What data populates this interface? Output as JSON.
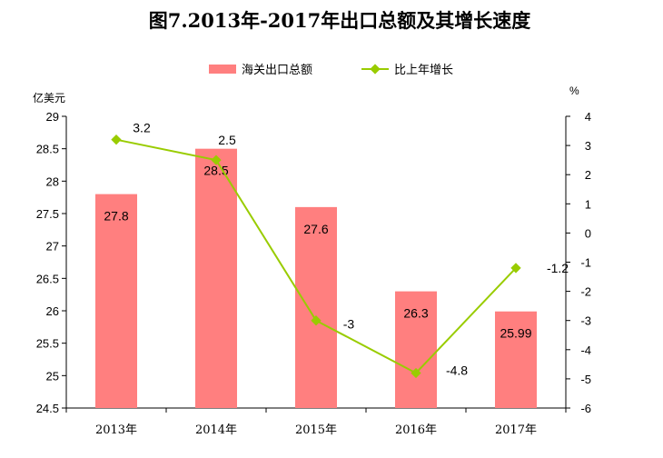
{
  "chart_data": {
    "type": "bar+line",
    "title": "图7.2013年-2017年出口总额及其增长速度",
    "categories": [
      "2013年",
      "2014年",
      "2015年",
      "2016年",
      "2017年"
    ],
    "series": [
      {
        "name": "海关出口总额",
        "type": "bar",
        "axis": "left",
        "values": [
          27.8,
          28.5,
          27.6,
          26.3,
          25.99
        ],
        "labels": [
          "27.8",
          "28.5",
          "27.6",
          "26.3",
          "25.99"
        ],
        "color": "#ff7f7f"
      },
      {
        "name": "比上年增长",
        "type": "line",
        "axis": "right",
        "values": [
          3.2,
          2.5,
          -3,
          -4.8,
          -1.2
        ],
        "labels": [
          "3.2",
          "2.5",
          "-3",
          "-4.8",
          "-1.2"
        ],
        "color": "#99cc00"
      }
    ],
    "y_left": {
      "unit": "亿美元",
      "ylim": [
        24.5,
        29
      ],
      "ticks": [
        24.5,
        25,
        25.5,
        26,
        26.5,
        27,
        27.5,
        28,
        28.5,
        29
      ],
      "tick_labels": [
        "24.5",
        "25",
        "25.5",
        "26",
        "26.5",
        "27",
        "27.5",
        "28",
        "28.5",
        "29"
      ]
    },
    "y_right": {
      "unit": "%",
      "ylim": [
        -6,
        4
      ],
      "ticks": [
        -6,
        -5,
        -4,
        -3,
        -2,
        -1,
        0,
        1,
        2,
        3,
        4
      ],
      "tick_labels": [
        "-6",
        "-5",
        "-4",
        "-3",
        "-2",
        "-1",
        "0",
        "1",
        "2",
        "3",
        "4"
      ]
    },
    "grid": false,
    "legend_position": "top-center"
  }
}
